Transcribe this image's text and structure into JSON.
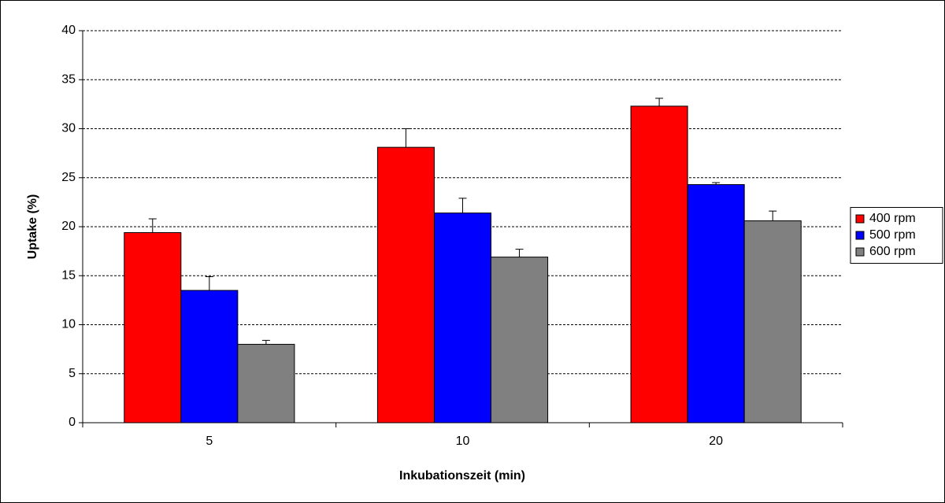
{
  "chart_data": {
    "type": "bar",
    "x_label": "Inkubationszeit (min)",
    "y_label": "Uptake (%)",
    "categories": [
      "5",
      "10",
      "20"
    ],
    "series": [
      {
        "name": "400 rpm",
        "color": "#ff0000",
        "values": [
          19.4,
          28.1,
          32.3
        ],
        "errors": [
          1.4,
          1.9,
          0.8
        ]
      },
      {
        "name": "500 rpm",
        "color": "#0000ff",
        "values": [
          13.5,
          21.4,
          24.3
        ],
        "errors": [
          1.4,
          1.5,
          0.2
        ]
      },
      {
        "name": "600 rpm",
        "color": "#808080",
        "values": [
          8.0,
          16.9,
          20.6
        ],
        "errors": [
          0.4,
          0.8,
          1.0
        ]
      }
    ],
    "ylim": [
      0,
      40
    ],
    "yticks": [
      0,
      5,
      10,
      15,
      20,
      25,
      30,
      35,
      40
    ],
    "grid": true,
    "legend": "right"
  }
}
